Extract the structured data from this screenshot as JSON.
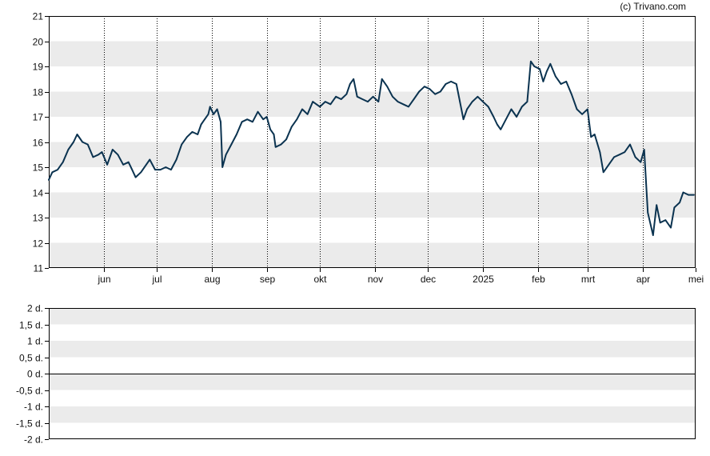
{
  "credit": "(c) Trivano.com",
  "colors": {
    "line": "#0b3350",
    "band": "#ebebeb",
    "axis": "#000000",
    "month_grid": "#000000"
  },
  "chart_data": [
    {
      "type": "line",
      "title": "",
      "xlabel": "",
      "ylabel": "",
      "ylim": [
        11,
        21
      ],
      "y_ticks": [
        "11",
        "12",
        "13",
        "14",
        "15",
        "16",
        "17",
        "18",
        "19",
        "20",
        "21"
      ],
      "x_domain": [
        "2024-05-01",
        "2025-05-01"
      ],
      "x_ticks": [
        {
          "date": "2024-06-01",
          "label": "jun"
        },
        {
          "date": "2024-07-01",
          "label": "jul"
        },
        {
          "date": "2024-08-01",
          "label": "aug"
        },
        {
          "date": "2024-09-01",
          "label": "sep"
        },
        {
          "date": "2024-10-01",
          "label": "okt"
        },
        {
          "date": "2024-11-01",
          "label": "nov"
        },
        {
          "date": "2024-12-01",
          "label": "dec"
        },
        {
          "date": "2025-01-01",
          "label": "2025"
        },
        {
          "date": "2025-02-01",
          "label": "feb"
        },
        {
          "date": "2025-03-01",
          "label": "mrt"
        },
        {
          "date": "2025-04-01",
          "label": "apr"
        },
        {
          "date": "2025-05-01",
          "label": "mei"
        }
      ],
      "grid": "alternating horizontal bands, dotted vertical month lines",
      "series": [
        {
          "points": [
            [
              "2024-05-01",
              14.5
            ],
            [
              "2024-05-03",
              14.8
            ],
            [
              "2024-05-06",
              14.9
            ],
            [
              "2024-05-09",
              15.2
            ],
            [
              "2024-05-12",
              15.7
            ],
            [
              "2024-05-15",
              16.0
            ],
            [
              "2024-05-17",
              16.3
            ],
            [
              "2024-05-20",
              16.0
            ],
            [
              "2024-05-23",
              15.9
            ],
            [
              "2024-05-26",
              15.4
            ],
            [
              "2024-05-29",
              15.5
            ],
            [
              "2024-05-31",
              15.6
            ],
            [
              "2024-06-03",
              15.1
            ],
            [
              "2024-06-06",
              15.7
            ],
            [
              "2024-06-09",
              15.5
            ],
            [
              "2024-06-12",
              15.1
            ],
            [
              "2024-06-15",
              15.2
            ],
            [
              "2024-06-17",
              14.9
            ],
            [
              "2024-06-19",
              14.6
            ],
            [
              "2024-06-22",
              14.8
            ],
            [
              "2024-06-25",
              15.1
            ],
            [
              "2024-06-27",
              15.3
            ],
            [
              "2024-06-30",
              14.9
            ],
            [
              "2024-07-03",
              14.9
            ],
            [
              "2024-07-06",
              15.0
            ],
            [
              "2024-07-09",
              14.9
            ],
            [
              "2024-07-12",
              15.3
            ],
            [
              "2024-07-15",
              15.9
            ],
            [
              "2024-07-18",
              16.2
            ],
            [
              "2024-07-21",
              16.4
            ],
            [
              "2024-07-24",
              16.3
            ],
            [
              "2024-07-26",
              16.7
            ],
            [
              "2024-07-28",
              16.9
            ],
            [
              "2024-07-30",
              17.1
            ],
            [
              "2024-07-31",
              17.4
            ],
            [
              "2024-08-02",
              17.1
            ],
            [
              "2024-08-04",
              17.3
            ],
            [
              "2024-08-06",
              16.8
            ],
            [
              "2024-08-07",
              15.0
            ],
            [
              "2024-08-09",
              15.5
            ],
            [
              "2024-08-12",
              15.9
            ],
            [
              "2024-08-15",
              16.3
            ],
            [
              "2024-08-18",
              16.8
            ],
            [
              "2024-08-21",
              16.9
            ],
            [
              "2024-08-24",
              16.8
            ],
            [
              "2024-08-27",
              17.2
            ],
            [
              "2024-08-30",
              16.9
            ],
            [
              "2024-09-01",
              17.0
            ],
            [
              "2024-09-03",
              16.5
            ],
            [
              "2024-09-05",
              16.3
            ],
            [
              "2024-09-06",
              15.8
            ],
            [
              "2024-09-09",
              15.9
            ],
            [
              "2024-09-12",
              16.1
            ],
            [
              "2024-09-15",
              16.6
            ],
            [
              "2024-09-18",
              16.9
            ],
            [
              "2024-09-21",
              17.3
            ],
            [
              "2024-09-24",
              17.1
            ],
            [
              "2024-09-27",
              17.6
            ],
            [
              "2024-09-29",
              17.5
            ],
            [
              "2024-10-01",
              17.4
            ],
            [
              "2024-10-04",
              17.6
            ],
            [
              "2024-10-07",
              17.5
            ],
            [
              "2024-10-10",
              17.8
            ],
            [
              "2024-10-13",
              17.7
            ],
            [
              "2024-10-16",
              17.9
            ],
            [
              "2024-10-18",
              18.3
            ],
            [
              "2024-10-20",
              18.5
            ],
            [
              "2024-10-22",
              17.8
            ],
            [
              "2024-10-25",
              17.7
            ],
            [
              "2024-10-28",
              17.6
            ],
            [
              "2024-10-31",
              17.8
            ],
            [
              "2024-11-03",
              17.6
            ],
            [
              "2024-11-05",
              18.5
            ],
            [
              "2024-11-08",
              18.2
            ],
            [
              "2024-11-11",
              17.8
            ],
            [
              "2024-11-14",
              17.6
            ],
            [
              "2024-11-17",
              17.5
            ],
            [
              "2024-11-20",
              17.4
            ],
            [
              "2024-11-23",
              17.7
            ],
            [
              "2024-11-26",
              18.0
            ],
            [
              "2024-11-29",
              18.2
            ],
            [
              "2024-12-02",
              18.1
            ],
            [
              "2024-12-05",
              17.9
            ],
            [
              "2024-12-08",
              18.0
            ],
            [
              "2024-12-11",
              18.3
            ],
            [
              "2024-12-14",
              18.4
            ],
            [
              "2024-12-17",
              18.3
            ],
            [
              "2024-12-19",
              17.6
            ],
            [
              "2024-12-21",
              16.9
            ],
            [
              "2024-12-23",
              17.3
            ],
            [
              "2024-12-26",
              17.6
            ],
            [
              "2024-12-29",
              17.8
            ],
            [
              "2025-01-01",
              17.6
            ],
            [
              "2025-01-04",
              17.4
            ],
            [
              "2025-01-07",
              17.0
            ],
            [
              "2025-01-09",
              16.7
            ],
            [
              "2025-01-11",
              16.5
            ],
            [
              "2025-01-14",
              16.9
            ],
            [
              "2025-01-17",
              17.3
            ],
            [
              "2025-01-20",
              17.0
            ],
            [
              "2025-01-23",
              17.4
            ],
            [
              "2025-01-26",
              17.6
            ],
            [
              "2025-01-28",
              19.2
            ],
            [
              "2025-01-30",
              19.0
            ],
            [
              "2025-02-02",
              18.9
            ],
            [
              "2025-02-04",
              18.4
            ],
            [
              "2025-02-06",
              18.8
            ],
            [
              "2025-02-08",
              19.1
            ],
            [
              "2025-02-11",
              18.6
            ],
            [
              "2025-02-14",
              18.3
            ],
            [
              "2025-02-17",
              18.4
            ],
            [
              "2025-02-20",
              17.9
            ],
            [
              "2025-02-23",
              17.3
            ],
            [
              "2025-02-26",
              17.1
            ],
            [
              "2025-03-01",
              17.3
            ],
            [
              "2025-03-03",
              16.2
            ],
            [
              "2025-03-05",
              16.3
            ],
            [
              "2025-03-08",
              15.6
            ],
            [
              "2025-03-10",
              14.8
            ],
            [
              "2025-03-13",
              15.1
            ],
            [
              "2025-03-16",
              15.4
            ],
            [
              "2025-03-19",
              15.5
            ],
            [
              "2025-03-22",
              15.6
            ],
            [
              "2025-03-25",
              15.9
            ],
            [
              "2025-03-28",
              15.4
            ],
            [
              "2025-03-31",
              15.2
            ],
            [
              "2025-04-02",
              15.7
            ],
            [
              "2025-04-04",
              13.2
            ],
            [
              "2025-04-07",
              12.3
            ],
            [
              "2025-04-09",
              13.5
            ],
            [
              "2025-04-11",
              12.8
            ],
            [
              "2025-04-14",
              12.9
            ],
            [
              "2025-04-17",
              12.6
            ],
            [
              "2025-04-19",
              13.4
            ],
            [
              "2025-04-22",
              13.6
            ],
            [
              "2025-04-24",
              14.0
            ],
            [
              "2025-04-27",
              13.9
            ],
            [
              "2025-04-30",
              13.9
            ]
          ]
        }
      ]
    },
    {
      "type": "line",
      "title": "",
      "xlabel": "",
      "ylabel": "",
      "ylim": [
        -2,
        2
      ],
      "y_ticks": [
        "2 d.",
        "1,5 d.",
        "1 d.",
        "0,5 d.",
        "0 d.",
        "-0,5 d.",
        "-1 d.",
        "-1,5 d.",
        "-2 d."
      ],
      "zero_line": 0,
      "series": []
    }
  ]
}
